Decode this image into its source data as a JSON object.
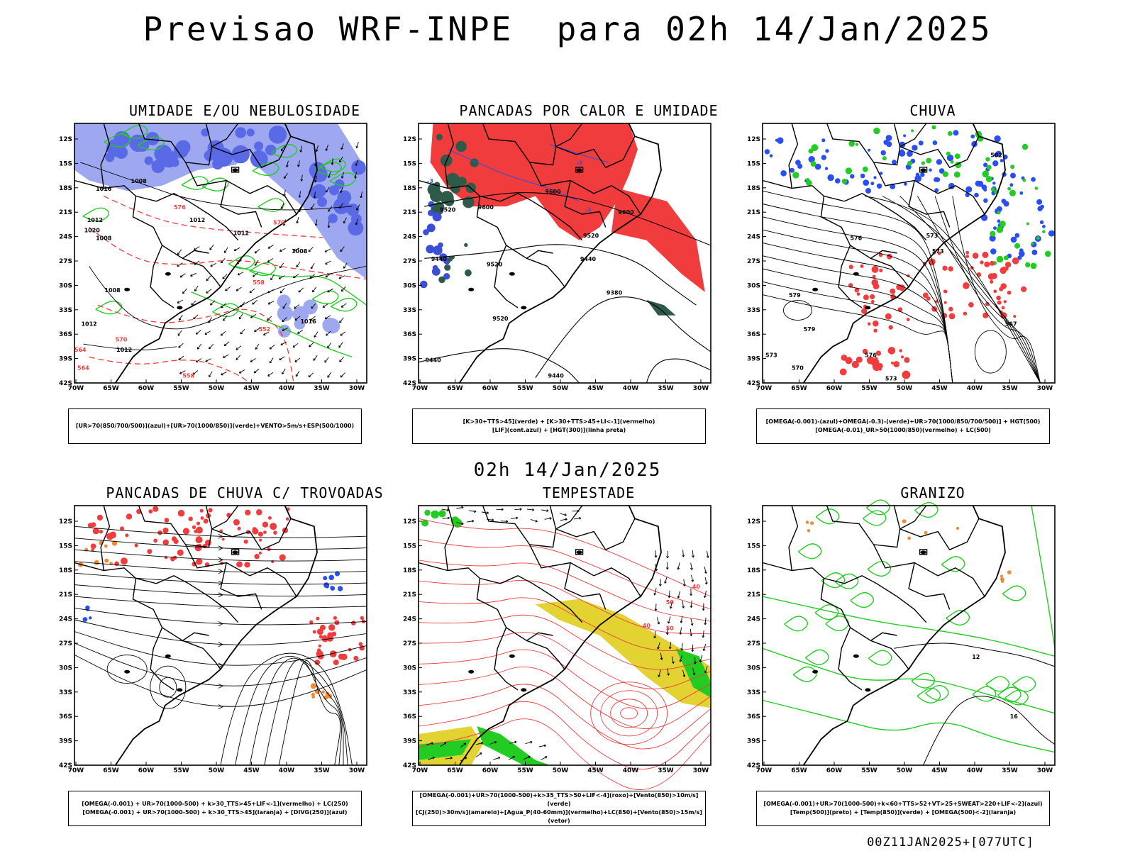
{
  "header": {
    "title": "Previsao WRF-INPE  para 02h 14/Jan/2025",
    "mid_time": "02h 14/Jan/2025",
    "footer": "00Z11JAN2025+[077UTC]"
  },
  "axes": {
    "lat_labels": [
      "12S",
      "15S",
      "18S",
      "21S",
      "24S",
      "27S",
      "30S",
      "33S",
      "36S",
      "39S",
      "42S"
    ],
    "lon_labels": [
      "70W",
      "65W",
      "60W",
      "55W",
      "50W",
      "45W",
      "40W",
      "35W",
      "30W"
    ]
  },
  "colors": {
    "blue": "#2b4ee0",
    "green": "#22cc22",
    "red": "#f03c3c",
    "lavender": "#9ea8f0",
    "darkgreen": "#2f5a4a",
    "yellow": "#e2d232",
    "orange": "#f08a32"
  },
  "panels": [
    {
      "title": "UMIDADE E/OU NEBULOSIDADE",
      "legend_1": "[UR>70(850/700/500)](azul)+[UR>70(1000/850)](verde)+VENTO>5m/s+ESP(500/1000)",
      "legend_2": "",
      "labels": [
        "1008",
        "1016",
        "1012",
        "1020",
        "1008",
        "1012",
        "1012",
        "1008",
        "1008",
        "1012",
        "1016",
        "1012",
        "576",
        "570",
        "564",
        "558",
        "552",
        "570",
        "564",
        "558"
      ]
    },
    {
      "title": "PANCADAS POR CALOR E UMIDADE",
      "legend_1": "[K>30+TTS>45](verde) + [K>30+TTS>45+LI<-1](vermelho)",
      "legend_2": "[LIF](cont.azul) + [HGT(300)](linha preta)",
      "labels": [
        "9600",
        "9520",
        "9600",
        "9520",
        "9520",
        "9440",
        "9440",
        "9380",
        "9520",
        "9440",
        "9440",
        "9600",
        "-3",
        "-3",
        "-3"
      ]
    },
    {
      "title": "CHUVA",
      "legend_1": "[OMEGA(-0.001)-(azul)+OMEGA(-0.3)-(verde)+UR>70(1000/850/700/500)] + HGT(500)",
      "legend_2": "[OMEGA(-0.01)_UR>50(1000/850)(vermelho) + LC(500)",
      "labels": [
        "579",
        "576",
        "573",
        "579",
        "573",
        "567",
        "570",
        "576",
        "573",
        "582",
        "573"
      ]
    },
    {
      "title": "PANCADAS DE CHUVA C/ TROVOADAS",
      "legend_1": "[OMEGA(-0.001) + UR>70(1000-500) + k>30_TTS>45+LIF<-1](vermelho) + LC(250)",
      "legend_2": "[OMEGA(-0.001) + UR>70(1000-500) + k>30_TTS>45](laranja) + [DIVG(250)](azul)",
      "labels": []
    },
    {
      "title": "TEMPESTADE",
      "legend_1": "[OMEGA(-0.001)+UR>70(1000-500)+k>35_TTS>50+LIF<-4](roxo)+[Vento(850)>10m/s](verde)",
      "legend_2": "[CJ(250)>30m/s](amarelo)+[Agua_P(40-60mm)](vermelho)+LC(850)+[Vento(850)>15m/s](vetor)",
      "labels": [
        "40",
        "50",
        "50",
        "40"
      ]
    },
    {
      "title": "GRANIZO",
      "legend_1": "[OMEGA(-0.001)+UR>70(1000-500)+k<60+TTS>52+VT>25+SWEAT>220+LIF<-2](azul)",
      "legend_2": "[Temp(500)](preto) + [Temp(850)](verde) + [OMEGA(500)<-2](laranja)",
      "labels": [
        "12",
        "16"
      ]
    }
  ]
}
